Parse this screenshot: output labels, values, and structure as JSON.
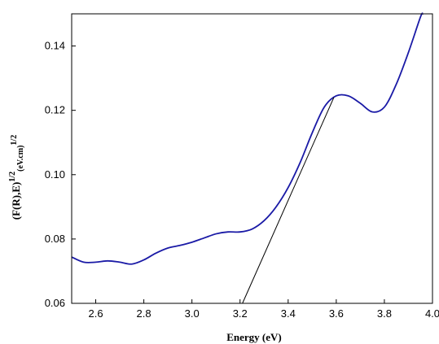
{
  "chart_data": {
    "type": "line",
    "title": "",
    "xlabel": "Energy (eV)",
    "ylabel": {
      "main": "(F(R),E)",
      "exp1": "1/2",
      "sub": "(eV.cm)",
      "exp2": "1/2"
    },
    "xlim": [
      2.5,
      4.0
    ],
    "ylim": [
      0.06,
      0.15
    ],
    "xticks": [
      "2.6",
      "2.8",
      "3.0",
      "3.2",
      "3.4",
      "3.6",
      "3.8",
      "4.0"
    ],
    "yticks": [
      "0.06",
      "0.08",
      "0.10",
      "0.12",
      "0.14"
    ],
    "grid": false,
    "series": [
      {
        "color": "#1a1aa6",
        "points": [
          [
            2.5,
            0.0744
          ],
          [
            2.55,
            0.0728
          ],
          [
            2.6,
            0.0728
          ],
          [
            2.65,
            0.0732
          ],
          [
            2.7,
            0.0728
          ],
          [
            2.75,
            0.0722
          ],
          [
            2.8,
            0.0735
          ],
          [
            2.85,
            0.0756
          ],
          [
            2.9,
            0.0772
          ],
          [
            2.95,
            0.078
          ],
          [
            3.0,
            0.079
          ],
          [
            3.05,
            0.0803
          ],
          [
            3.1,
            0.0816
          ],
          [
            3.15,
            0.0822
          ],
          [
            3.2,
            0.0822
          ],
          [
            3.25,
            0.0831
          ],
          [
            3.3,
            0.0857
          ],
          [
            3.35,
            0.09
          ],
          [
            3.4,
            0.096
          ],
          [
            3.45,
            0.1038
          ],
          [
            3.5,
            0.113
          ],
          [
            3.55,
            0.121
          ],
          [
            3.6,
            0.1245
          ],
          [
            3.65,
            0.1245
          ],
          [
            3.7,
            0.1222
          ],
          [
            3.75,
            0.1195
          ],
          [
            3.8,
            0.121
          ],
          [
            3.85,
            0.1282
          ],
          [
            3.9,
            0.138
          ],
          [
            3.95,
            0.149
          ],
          [
            3.96,
            0.15
          ]
        ]
      },
      {
        "color": "#000000",
        "points": [
          [
            3.21,
            0.06
          ],
          [
            3.59,
            0.124
          ]
        ]
      }
    ]
  }
}
